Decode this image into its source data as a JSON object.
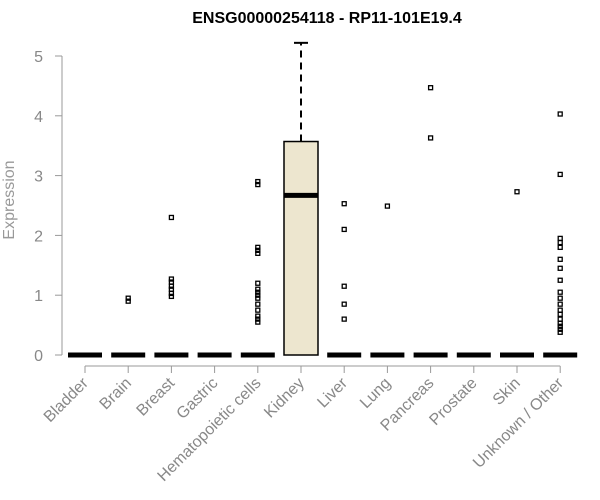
{
  "chart_data": {
    "type": "box",
    "title": "ENSG00000254118 - RP11-101E19.4",
    "xlabel": "",
    "ylabel": "Expression",
    "ylim": [
      0,
      5
    ],
    "yticks": [
      0,
      1,
      2,
      3,
      4,
      5
    ],
    "grid": false,
    "legend": "none",
    "categories": [
      "Bladder",
      "Brain",
      "Breast",
      "Gastric",
      "Hematopoietic cells",
      "Kidney",
      "Liver",
      "Lung",
      "Pancreas",
      "Prostate",
      "Skin",
      "Unknown / Other"
    ],
    "boxes": [
      {
        "category": "Bladder",
        "min": 0,
        "q1": 0,
        "median": 0,
        "q3": 0,
        "max": 0,
        "outliers": []
      },
      {
        "category": "Brain",
        "min": 0,
        "q1": 0,
        "median": 0,
        "q3": 0,
        "max": 0,
        "outliers": [
          0.9,
          0.95
        ]
      },
      {
        "category": "Breast",
        "min": 0,
        "q1": 0,
        "median": 0,
        "q3": 0,
        "max": 0,
        "outliers": [
          0.98,
          1.03,
          1.1,
          1.15,
          1.22,
          1.27,
          2.3
        ]
      },
      {
        "category": "Gastric",
        "min": 0,
        "q1": 0,
        "median": 0,
        "q3": 0,
        "max": 0,
        "outliers": []
      },
      {
        "category": "Hematopoietic cells",
        "min": 0,
        "q1": 0,
        "median": 0,
        "q3": 0,
        "max": 0,
        "outliers": [
          0.55,
          0.6,
          0.65,
          0.75,
          0.85,
          0.95,
          1.0,
          1.05,
          1.1,
          1.2,
          1.7,
          1.75,
          1.8,
          2.85,
          2.9
        ]
      },
      {
        "category": "Kidney",
        "min": 0,
        "q1": 0,
        "median": 2.67,
        "q3": 3.57,
        "max": 5.22,
        "outliers": []
      },
      {
        "category": "Liver",
        "min": 0,
        "q1": 0,
        "median": 0,
        "q3": 0,
        "max": 0,
        "outliers": [
          0.6,
          0.85,
          1.15,
          2.1,
          2.53
        ]
      },
      {
        "category": "Lung",
        "min": 0,
        "q1": 0,
        "median": 0,
        "q3": 0,
        "max": 0,
        "outliers": [
          2.49
        ]
      },
      {
        "category": "Pancreas",
        "min": 0,
        "q1": 0,
        "median": 0,
        "q3": 0,
        "max": 0,
        "outliers": [
          3.63,
          4.47
        ]
      },
      {
        "category": "Prostate",
        "min": 0,
        "q1": 0,
        "median": 0,
        "q3": 0,
        "max": 0,
        "outliers": []
      },
      {
        "category": "Skin",
        "min": 0,
        "q1": 0,
        "median": 0,
        "q3": 0,
        "max": 0,
        "outliers": [
          2.73
        ]
      },
      {
        "category": "Unknown / Other",
        "min": 0,
        "q1": 0,
        "median": 0,
        "q3": 0,
        "max": 0,
        "outliers": [
          0.38,
          0.43,
          0.48,
          0.53,
          0.6,
          0.68,
          0.75,
          0.85,
          0.95,
          1.05,
          1.25,
          1.45,
          1.6,
          1.8,
          1.88,
          1.95,
          3.02,
          4.03
        ]
      }
    ],
    "colors": {
      "box_fill": "#ede6cf",
      "box_stroke": "#000000",
      "axis": "#999999",
      "tick_text": "#888888"
    }
  }
}
